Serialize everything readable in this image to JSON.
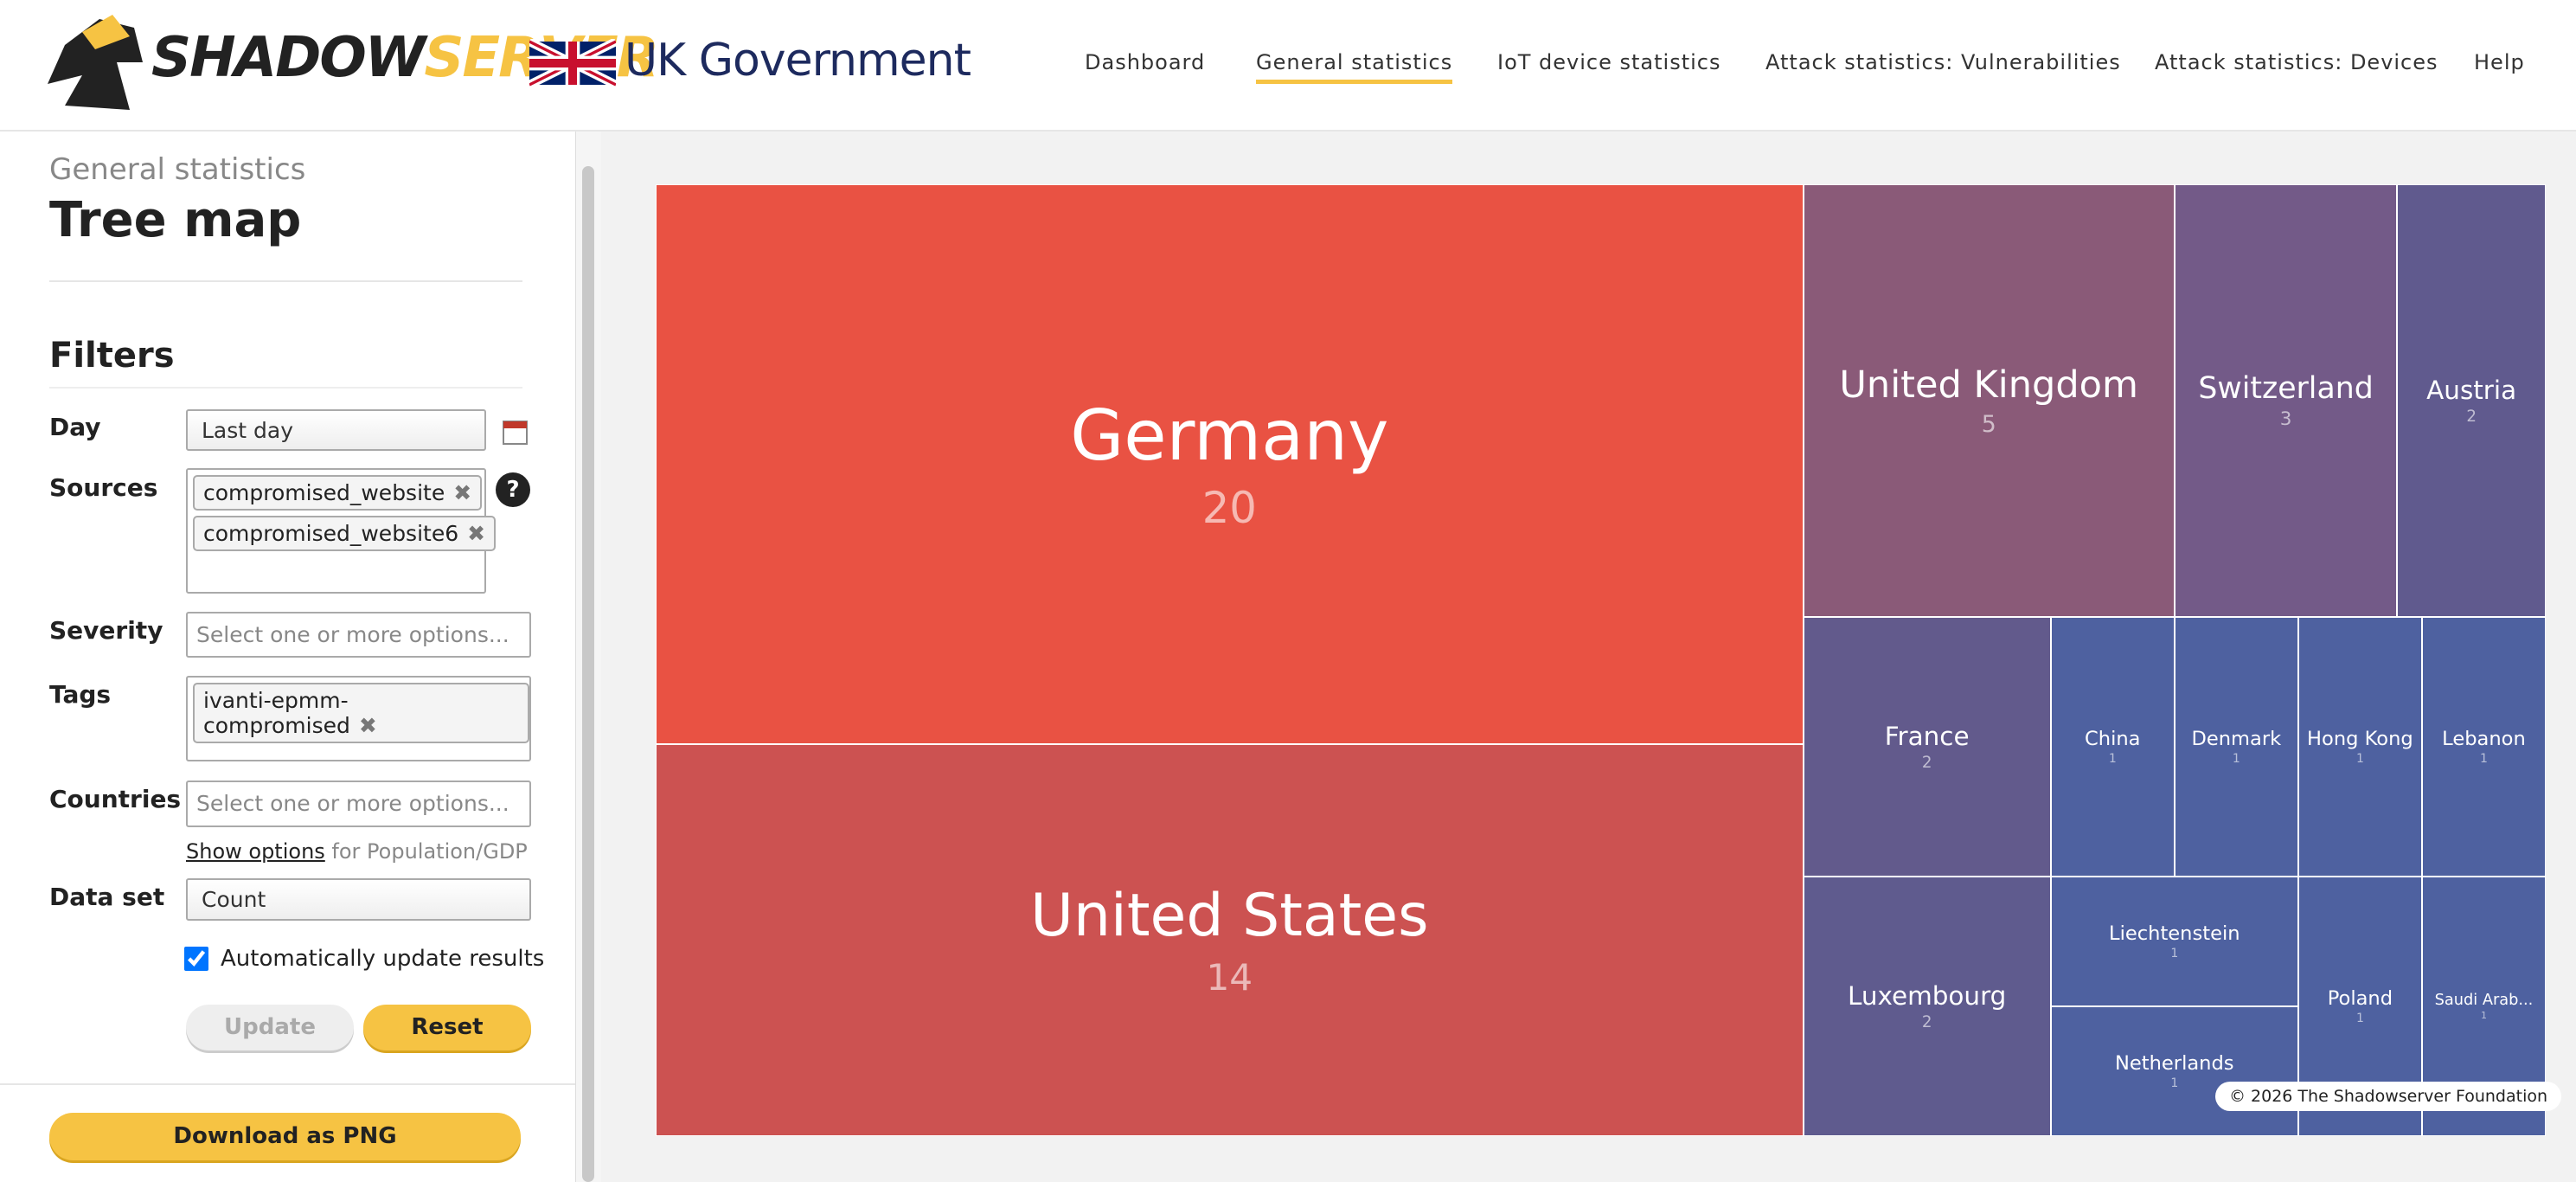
{
  "header": {
    "logo": [
      "SHADOW",
      "SERVER"
    ],
    "partner": "UK Government",
    "nav": [
      "Dashboard",
      "General statistics",
      "IoT device statistics",
      "Attack statistics: Vulnerabilities",
      "Attack statistics: Devices",
      "Help"
    ],
    "active_nav": 1
  },
  "sidebar": {
    "section": "General statistics",
    "title": "Tree map",
    "filters_title": "Filters",
    "day": {
      "label": "Day",
      "value": "Last day"
    },
    "sources": {
      "label": "Sources",
      "selected": [
        "compromised_website",
        "compromised_website6"
      ],
      "help": "?"
    },
    "severity": {
      "label": "Severity",
      "placeholder": "Select one or more options..."
    },
    "tags": {
      "label": "Tags",
      "selected": [
        "ivanti-epmm-compromised"
      ]
    },
    "countries": {
      "label": "Countries",
      "placeholder": "Select one or more options...",
      "link": "Show options",
      "hint": "for Population/GDP"
    },
    "dataset": {
      "label": "Data set",
      "value": "Count"
    },
    "auto_update": {
      "label": "Automatically update results",
      "checked": true
    },
    "buttons": [
      "Update",
      "Reset"
    ],
    "download": "Download as PNG"
  },
  "chart_data": {
    "type": "treemap",
    "categories": [
      "Germany",
      "United States",
      "United Kingdom",
      "Switzerland",
      "Austria",
      "France",
      "Luxembourg",
      "China",
      "Denmark",
      "Hong Kong",
      "Lebanon",
      "Liechtenstein",
      "Netherlands",
      "Poland",
      "Saudi Arab..."
    ],
    "values": [
      20,
      14,
      5,
      3,
      2,
      2,
      2,
      1,
      1,
      1,
      1,
      1,
      1,
      1,
      1
    ],
    "colors": [
      "#e95243",
      "#cc5251",
      "#8a5a78",
      "#735a88",
      "#605a8e",
      "#625a8c",
      "#5f5b8e",
      "#4e61a0",
      "#4e61a0",
      "#4e61a0",
      "#4e61a0",
      "#4e61a0",
      "#4e61a0",
      "#4e61a0",
      "#4e61a0"
    ],
    "credit": "© 2026 The Shadowserver Foundation"
  }
}
